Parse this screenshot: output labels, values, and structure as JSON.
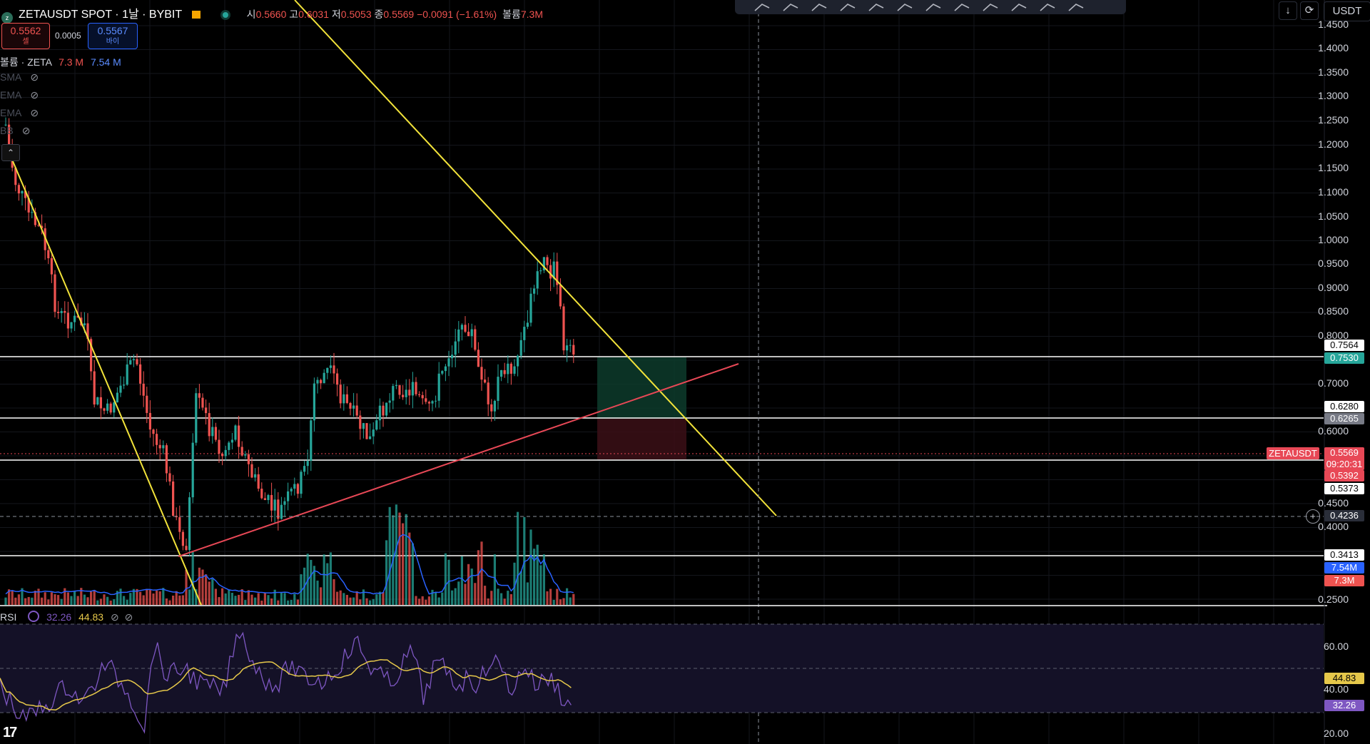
{
  "header": {
    "symbol": "ZETAUSDT SPOT · 1날 · BYBIT",
    "ohlc": [
      {
        "k": "시",
        "v": "0.5660"
      },
      {
        "k": "고",
        "v": "0.6031"
      },
      {
        "k": "저",
        "v": "0.5053"
      },
      {
        "k": "종",
        "v": "0.5569"
      }
    ],
    "change": "−0.0091 (−1.61%)",
    "vol_label": "볼륨",
    "vol_value": "7.3M",
    "sell_price": "0.5562",
    "sell_label": "셀",
    "spread": "0.0005",
    "buy_price": "0.5567",
    "buy_label": "바이",
    "volume_legend_label": "볼륨 · ZETA",
    "volume_legend_v1": "7.3 M",
    "volume_legend_v2": "7.54 M",
    "indicators": [
      "SMA",
      "EMA",
      "EMA",
      "BB"
    ]
  },
  "top_right": {
    "currency": "USDT"
  },
  "toolbar": {
    "tools": [
      "trend-line",
      "horizontal-ray",
      "path",
      "parallel-channel",
      "fib-retracement",
      "rectangle",
      "xabcd-pattern",
      "elliott-wave",
      "projection",
      "long-position",
      "brush",
      "measure"
    ]
  },
  "price_axis": {
    "ticks": [
      "1.4500",
      "1.4000",
      "1.3500",
      "1.3000",
      "1.2500",
      "1.2000",
      "1.1500",
      "1.1000",
      "1.0500",
      "1.0000",
      "0.9500",
      "0.9000",
      "0.8500",
      "0.8000",
      "0.7000",
      "0.6000",
      "0.4500",
      "0.4000",
      "0.2500"
    ],
    "tags": {
      "level_1": "0.7564",
      "level_2": "0.7530",
      "level_3": "0.6280",
      "level_4": "0.6265",
      "symbol_tag": "ZETAUSDT",
      "last_price": "0.5569",
      "countdown": "09:20:31",
      "level_5": "0.5392",
      "level_6": "0.5373",
      "crosshair": "0.4236",
      "level_7": "0.3413",
      "vol_ma": "7.54M",
      "vol": "7.3M"
    }
  },
  "rsi": {
    "label": "RSI",
    "value": "32.26",
    "ma_value": "44.83",
    "ticks": [
      "60.00",
      "40.00",
      "20.00"
    ],
    "tag_ma": "44.83",
    "tag_rsi": "32.26"
  },
  "colors": {
    "bg": "#000000",
    "up": "#26a69a",
    "down": "#ef5350",
    "trendline": "#f2e33a",
    "support_line": "#e84856",
    "rsi": "#7e57c2",
    "rsi_ma": "#e6c84a",
    "volume_ma": "#2962ff"
  }
}
